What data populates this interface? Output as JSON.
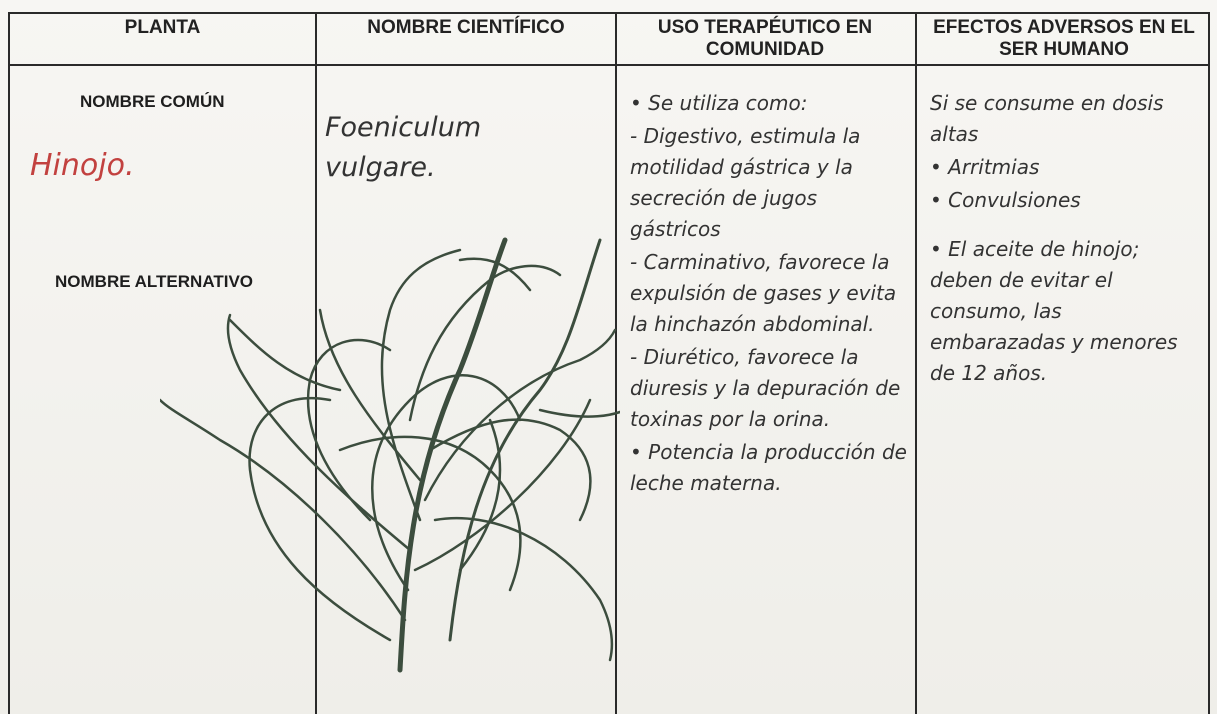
{
  "table": {
    "headers": [
      "PLANTA",
      "NOMBRE CIENTÍFICO",
      "USO TERAPÉUTICO EN COMUNIDAD",
      "EFECTOS ADVERSOS EN EL SER HUMANO"
    ],
    "planta": {
      "common_name_label": "NOMBRE COMÚN",
      "common_name": "Hinojo.",
      "alternative_name_label": "NOMBRE ALTERNATIVO"
    },
    "scientific_name": "Foeniculum vulgare.",
    "therapeutic_use": [
      "• Se utiliza como:",
      "- Digestivo, estimula la motilidad gástrica y la secreción de jugos gástricos",
      "- Carminativo, favorece la expulsión de gases y evita la hinchazón abdominal.",
      "- Diurético, favorece la diuresis y la depuración de toxinas por la orina.",
      "• Potencia la producción de leche materna."
    ],
    "adverse_effects": [
      "Si se consume en dosis altas",
      "• Arritmias",
      "• Convulsiones",
      "• El aceite de hinojo; deben de evitar el consumo, las embarazadas y menores de 12 años."
    ]
  }
}
